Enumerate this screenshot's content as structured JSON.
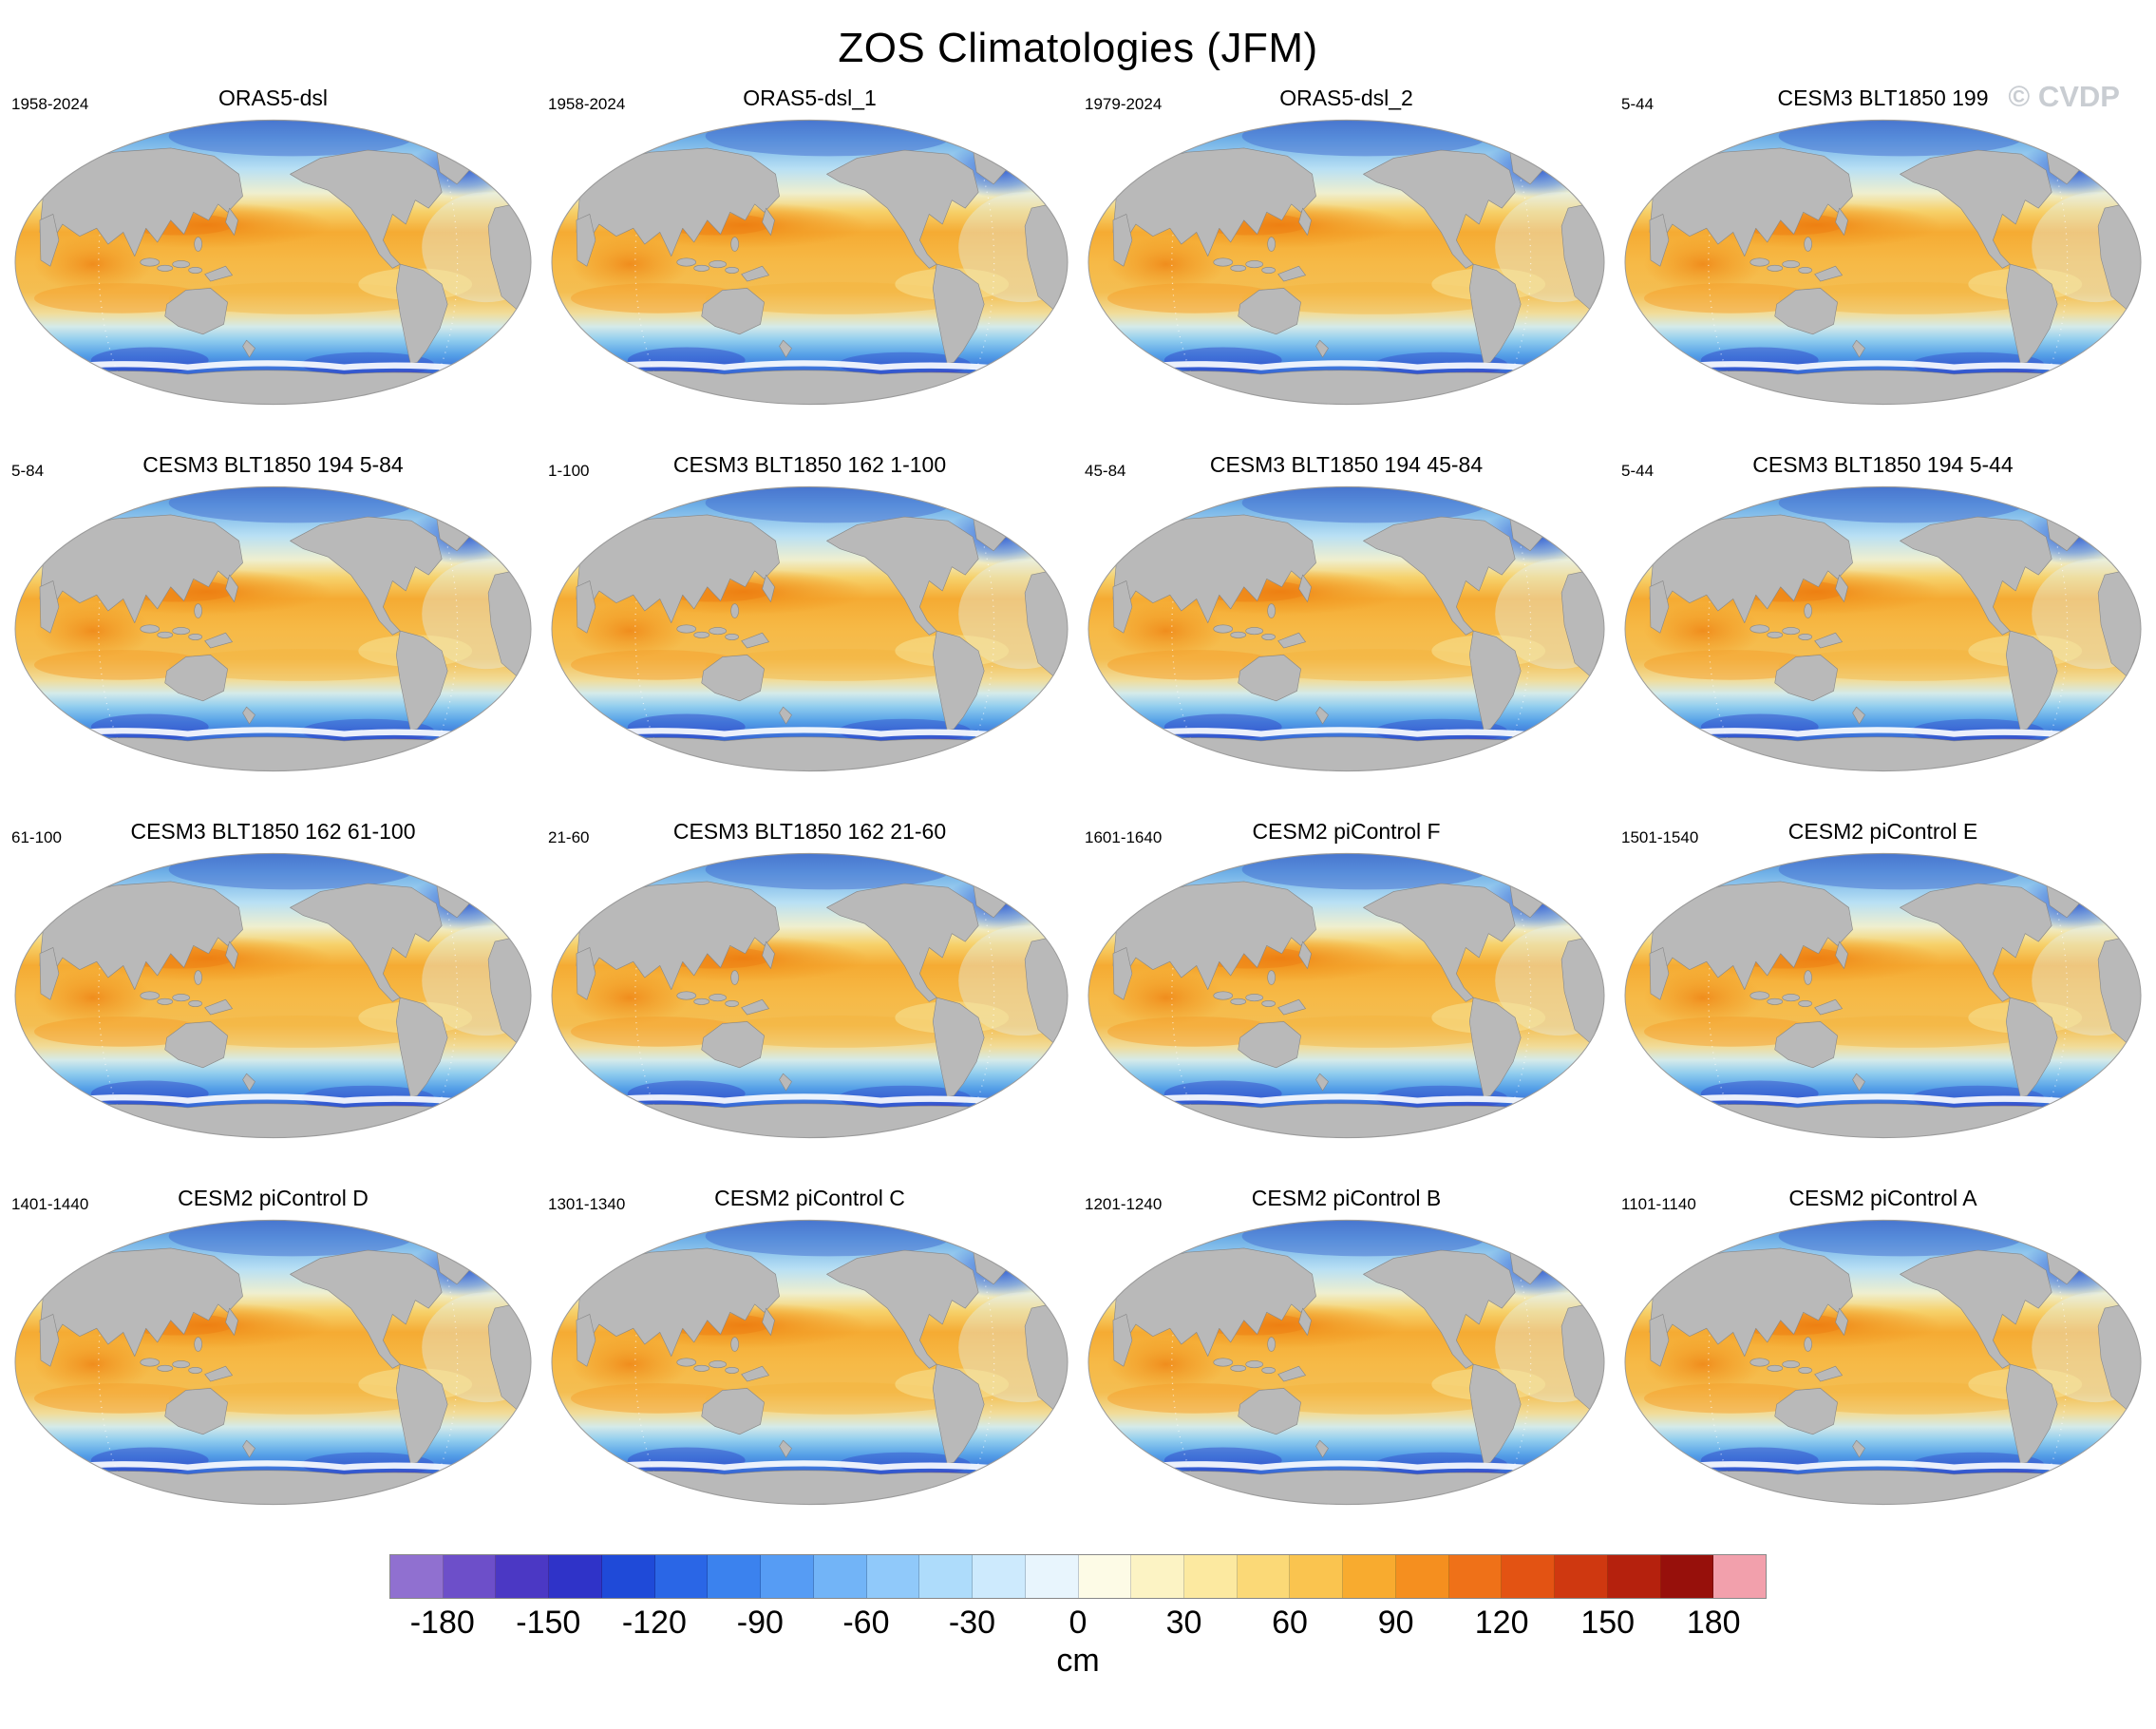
{
  "figure": {
    "title": "ZOS Climatologies (JFM)",
    "watermark": "© CVDP",
    "units_label": "cm"
  },
  "panels": [
    {
      "title": "ORAS5-dsl",
      "period": "1958-2024"
    },
    {
      "title": "ORAS5-dsl_1",
      "period": "1958-2024"
    },
    {
      "title": "ORAS5-dsl_2",
      "period": "1979-2024"
    },
    {
      "title": "CESM3 BLT1850 199",
      "period": "5-44"
    },
    {
      "title": "CESM3 BLT1850 194 5-84",
      "period": "5-84"
    },
    {
      "title": "CESM3 BLT1850 162 1-100",
      "period": "1-100"
    },
    {
      "title": "CESM3 BLT1850 194 45-84",
      "period": "45-84"
    },
    {
      "title": "CESM3 BLT1850 194 5-44",
      "period": "5-44"
    },
    {
      "title": "CESM3 BLT1850 162 61-100",
      "period": "61-100"
    },
    {
      "title": "CESM3 BLT1850 162 21-60",
      "period": "21-60"
    },
    {
      "title": "CESM2 piControl F",
      "period": "1601-1640"
    },
    {
      "title": "CESM2 piControl E",
      "period": "1501-1540"
    },
    {
      "title": "CESM2 piControl D",
      "period": "1401-1440"
    },
    {
      "title": "CESM2 piControl C",
      "period": "1301-1340"
    },
    {
      "title": "CESM2 piControl B",
      "period": "1201-1240"
    },
    {
      "title": "CESM2 piControl A",
      "period": "1101-1140"
    }
  ],
  "colorbar": {
    "min": -195,
    "max": 195,
    "step": 15,
    "ticks": [
      -180,
      -150,
      -120,
      -90,
      -60,
      -30,
      0,
      30,
      60,
      90,
      120,
      150,
      180
    ],
    "units": "cm",
    "colors": [
      "#9070d0",
      "#6d4fc9",
      "#4b38c4",
      "#2f33c8",
      "#1f4ad8",
      "#2a66e6",
      "#3b82ee",
      "#569cf4",
      "#72b4f7",
      "#90c9fa",
      "#aedcfb",
      "#cdeafd",
      "#e8f5fd",
      "#fdfbe6",
      "#fcf3c4",
      "#fce9a0",
      "#fbd977",
      "#fac44f",
      "#f8ab2f",
      "#f58f1f",
      "#ef7118",
      "#e35313",
      "#cf3810",
      "#b5210d",
      "#97100b",
      "#f2a0ac"
    ],
    "land_color": "#b9b9b9"
  },
  "chart_data": {
    "type": "heatmap",
    "subtype": "4x4 grid of global pacific-centered elliptical (Robinson-style) climatology maps",
    "title": "ZOS Climatologies (JFM)",
    "units": "cm",
    "legend_position": "bottom",
    "colorbar_range": [
      -195,
      195
    ],
    "colorbar_ticks": [
      -180,
      -150,
      -120,
      -90,
      -60,
      -30,
      0,
      30,
      60,
      90,
      120,
      150,
      180
    ],
    "panels": [
      {
        "name": "ORAS5-dsl",
        "period": "1958-2024"
      },
      {
        "name": "ORAS5-dsl_1",
        "period": "1958-2024"
      },
      {
        "name": "ORAS5-dsl_2",
        "period": "1979-2024"
      },
      {
        "name": "CESM3 BLT1850 199",
        "period": "5-44"
      },
      {
        "name": "CESM3 BLT1850 194 5-84",
        "period": "5-84"
      },
      {
        "name": "CESM3 BLT1850 162 1-100",
        "period": "1-100"
      },
      {
        "name": "CESM3 BLT1850 194 45-84",
        "period": "45-84"
      },
      {
        "name": "CESM3 BLT1850 194 5-44",
        "period": "5-44"
      },
      {
        "name": "CESM3 BLT1850 162 61-100",
        "period": "61-100"
      },
      {
        "name": "CESM3 BLT1850 162 21-60",
        "period": "21-60"
      },
      {
        "name": "CESM2 piControl F",
        "period": "1601-1640"
      },
      {
        "name": "CESM2 piControl E",
        "period": "1501-1540"
      },
      {
        "name": "CESM2 piControl D",
        "period": "1401-1440"
      },
      {
        "name": "CESM2 piControl C",
        "period": "1301-1340"
      },
      {
        "name": "CESM2 piControl B",
        "period": "1201-1240"
      },
      {
        "name": "CESM2 piControl A",
        "period": "1101-1140"
      }
    ],
    "description": "Each panel shows sea-surface-height (ZOS) JFM climatology: orange/yellow highs in subtropical gyres (strongest in the western North Pacific), pale values near zero in mid-latitude transition zones, blue to dark blue/purple lows in the Arctic, subpolar North Atlantic and Southern Ocean; continents shown in gray."
  }
}
